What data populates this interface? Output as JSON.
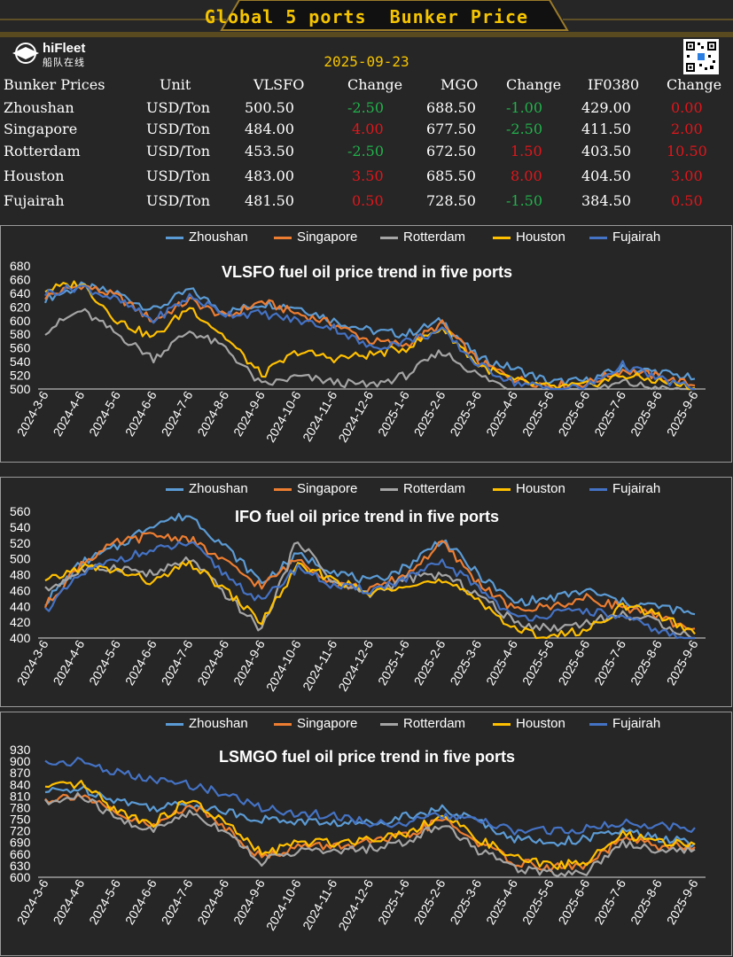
{
  "header": {
    "title": "Global 5 ports  Bunker Price",
    "logo_text": "hiFleet",
    "logo_sub": "船队在线",
    "date": "2025-09-23"
  },
  "table": {
    "columns": [
      "Bunker Prices",
      "Unit",
      "VLSFO",
      "Change",
      "MGO",
      "Change",
      "IF0380",
      "Change"
    ],
    "rows": [
      {
        "port": "Zhoushan",
        "unit": "USD/Ton",
        "vlsfo": "500.50",
        "vlsfo_change": "-2.50",
        "mgo": "688.50",
        "mgo_change": "-1.00",
        "ifo": "429.00",
        "ifo_change": "0.00"
      },
      {
        "port": "Singapore",
        "unit": "USD/Ton",
        "vlsfo": "484.00",
        "vlsfo_change": "4.00",
        "mgo": "677.50",
        "mgo_change": "-2.50",
        "ifo": "411.50",
        "ifo_change": "2.00"
      },
      {
        "port": "Rotterdam",
        "unit": "USD/Ton",
        "vlsfo": "453.50",
        "vlsfo_change": "-2.50",
        "mgo": "672.50",
        "mgo_change": "1.50",
        "ifo": "403.50",
        "ifo_change": "10.50"
      },
      {
        "port": "Houston",
        "unit": "USD/Ton",
        "vlsfo": "483.00",
        "vlsfo_change": "3.50",
        "mgo": "685.50",
        "mgo_change": "8.00",
        "ifo": "404.50",
        "ifo_change": "3.00"
      },
      {
        "port": "Fujairah",
        "unit": "USD/Ton",
        "vlsfo": "481.50",
        "vlsfo_change": "0.50",
        "mgo": "728.50",
        "mgo_change": "-1.50",
        "ifo": "384.50",
        "ifo_change": "0.50"
      }
    ]
  },
  "colors": {
    "accent": "#f5c400",
    "positive_change": "#e0161b",
    "negative_change": "#21b14b",
    "Zhoushan": "#5b9bd5",
    "Singapore": "#ed7d31",
    "Rotterdam": "#a5a5a5",
    "Houston": "#ffc000",
    "Fujairah": "#4472c4"
  },
  "chart_data": [
    {
      "type": "line",
      "title": "VLSFO fuel oil price trend in five ports",
      "ylim": [
        500,
        680
      ],
      "yticks": [
        500,
        520,
        540,
        560,
        580,
        600,
        620,
        640,
        660,
        680
      ],
      "categories": [
        "2024-3-6",
        "2024-4-6",
        "2024-5-6",
        "2024-6-6",
        "2024-7-6",
        "2024-8-6",
        "2024-9-6",
        "2024-10-6",
        "2024-11-6",
        "2024-12-6",
        "2025-1-6",
        "2025-2-6",
        "2025-3-6",
        "2025-4-6",
        "2025-5-6",
        "2025-6-6",
        "2025-7-6",
        "2025-8-6",
        "2025-9-6"
      ],
      "legend": "top",
      "series": [
        {
          "name": "Zhoushan",
          "values": [
            632,
            650,
            640,
            615,
            645,
            612,
            625,
            620,
            600,
            585,
            580,
            600,
            545,
            530,
            510,
            512,
            530,
            525,
            515
          ]
        },
        {
          "name": "Singapore",
          "values": [
            635,
            652,
            635,
            600,
            630,
            605,
            628,
            610,
            595,
            570,
            565,
            595,
            540,
            515,
            505,
            508,
            528,
            518,
            505
          ]
        },
        {
          "name": "Rotterdam",
          "values": [
            585,
            615,
            580,
            545,
            585,
            560,
            505,
            518,
            510,
            505,
            520,
            555,
            520,
            498,
            490,
            492,
            510,
            500,
            495
          ]
        },
        {
          "name": "Houston",
          "values": [
            645,
            655,
            600,
            575,
            620,
            575,
            520,
            555,
            545,
            550,
            560,
            590,
            535,
            512,
            502,
            505,
            520,
            512,
            502
          ]
        },
        {
          "name": "Fujairah",
          "values": [
            640,
            650,
            630,
            600,
            635,
            610,
            610,
            600,
            590,
            560,
            570,
            585,
            535,
            510,
            500,
            503,
            535,
            515,
            500
          ]
        }
      ]
    },
    {
      "type": "line",
      "title": "IFO fuel oil price trend in five ports",
      "ylim": [
        400,
        560
      ],
      "yticks": [
        400,
        420,
        440,
        460,
        480,
        500,
        520,
        540,
        560
      ],
      "categories": [
        "2024-3-6",
        "2024-4-6",
        "2024-5-6",
        "2024-6-6",
        "2024-7-6",
        "2024-8-6",
        "2024-9-6",
        "2024-10-6",
        "2024-11-6",
        "2024-12-6",
        "2025-1-6",
        "2025-2-6",
        "2025-3-6",
        "2025-4-6",
        "2025-5-6",
        "2025-6-6",
        "2025-7-6",
        "2025-8-6",
        "2025-9-6"
      ],
      "legend": "top",
      "series": [
        {
          "name": "Zhoushan",
          "values": [
            445,
            495,
            515,
            545,
            555,
            515,
            470,
            505,
            485,
            470,
            490,
            525,
            480,
            445,
            450,
            460,
            445,
            440,
            430
          ]
        },
        {
          "name": "Singapore",
          "values": [
            440,
            495,
            520,
            530,
            525,
            495,
            465,
            500,
            470,
            460,
            480,
            520,
            470,
            435,
            440,
            450,
            440,
            425,
            412
          ]
        },
        {
          "name": "Rotterdam",
          "values": [
            460,
            485,
            490,
            480,
            500,
            455,
            410,
            525,
            470,
            455,
            475,
            480,
            455,
            420,
            412,
            420,
            430,
            420,
            400
          ]
        },
        {
          "name": "Houston",
          "values": [
            470,
            490,
            485,
            470,
            495,
            460,
            420,
            490,
            475,
            455,
            470,
            470,
            450,
            410,
            402,
            410,
            440,
            430,
            405
          ]
        },
        {
          "name": "Fujairah",
          "values": [
            435,
            480,
            500,
            510,
            520,
            480,
            445,
            490,
            465,
            460,
            475,
            495,
            465,
            425,
            430,
            435,
            425,
            410,
            390
          ]
        }
      ]
    },
    {
      "type": "line",
      "title": "LSMGO fuel oil price trend in five ports",
      "ylim": [
        600,
        930
      ],
      "yticks": [
        600,
        630,
        660,
        690,
        720,
        750,
        780,
        810,
        840,
        870,
        900,
        930
      ],
      "categories": [
        "2024-3-6",
        "2024-4-6",
        "2024-5-6",
        "2024-6-6",
        "2024-7-6",
        "2024-8-6",
        "2024-9-6",
        "2024-10-6",
        "2024-11-6",
        "2024-12-6",
        "2025-1-6",
        "2025-2-6",
        "2025-3-6",
        "2025-4-6",
        "2025-5-6",
        "2025-6-6",
        "2025-7-6",
        "2025-8-6",
        "2025-9-6"
      ],
      "legend": "top",
      "series": [
        {
          "name": "Zhoushan",
          "values": [
            820,
            830,
            800,
            780,
            790,
            770,
            750,
            745,
            740,
            740,
            760,
            775,
            745,
            700,
            690,
            700,
            720,
            700,
            688
          ]
        },
        {
          "name": "Singapore",
          "values": [
            800,
            815,
            760,
            730,
            790,
            730,
            650,
            680,
            680,
            690,
            705,
            750,
            690,
            640,
            625,
            630,
            700,
            680,
            678
          ]
        },
        {
          "name": "Rotterdam",
          "values": [
            790,
            810,
            750,
            720,
            770,
            720,
            640,
            670,
            665,
            675,
            690,
            740,
            670,
            625,
            612,
            615,
            690,
            670,
            672
          ]
        },
        {
          "name": "Houston",
          "values": [
            830,
            840,
            770,
            740,
            800,
            740,
            660,
            690,
            690,
            700,
            715,
            760,
            700,
            650,
            630,
            640,
            710,
            690,
            685
          ]
        },
        {
          "name": "Fujairah",
          "values": [
            895,
            900,
            870,
            850,
            840,
            815,
            780,
            765,
            760,
            740,
            740,
            760,
            745,
            720,
            720,
            725,
            740,
            735,
            728
          ]
        }
      ]
    }
  ]
}
